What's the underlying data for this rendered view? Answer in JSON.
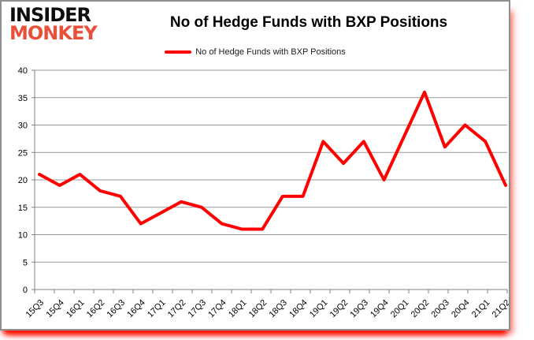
{
  "logo": {
    "line1": "INSIDER",
    "line2": "MONKEY"
  },
  "header": {
    "title": "No of Hedge Funds with BXP Positions"
  },
  "legend": {
    "label": "No of Hedge Funds with BXP Positions"
  },
  "colors": {
    "line": "#ff0000",
    "logo_red": "#e8503a",
    "grid": "#9a9a9a",
    "axis": "#808080",
    "text": "#000000",
    "card_border": "#8f8f8f",
    "shadow_red": "#ff0c02"
  },
  "chart_data": {
    "type": "line",
    "title": "No of Hedge Funds with BXP Positions",
    "categories": [
      "15Q3",
      "15Q4",
      "16Q1",
      "16Q2",
      "16Q3",
      "16Q4",
      "17Q1",
      "17Q2",
      "17Q3",
      "17Q4",
      "18Q1",
      "18Q2",
      "18Q3",
      "18Q4",
      "19Q1",
      "19Q2",
      "19Q3",
      "19Q4",
      "20Q1",
      "20Q2",
      "20Q3",
      "20Q4",
      "21Q1",
      "21Q2"
    ],
    "series": [
      {
        "name": "No of Hedge Funds with BXP Positions",
        "color": "#ff0000",
        "values": [
          21,
          19,
          21,
          18,
          17,
          12,
          14,
          16,
          15,
          12,
          11,
          11,
          17,
          17,
          27,
          23,
          27,
          20,
          28,
          36,
          26,
          30,
          27,
          19
        ]
      }
    ],
    "xlabel": "",
    "ylabel": "",
    "ylim": [
      0,
      40
    ],
    "yticks": [
      0,
      5,
      10,
      15,
      20,
      25,
      30,
      35,
      40
    ],
    "grid": true,
    "legend_position": "top"
  }
}
